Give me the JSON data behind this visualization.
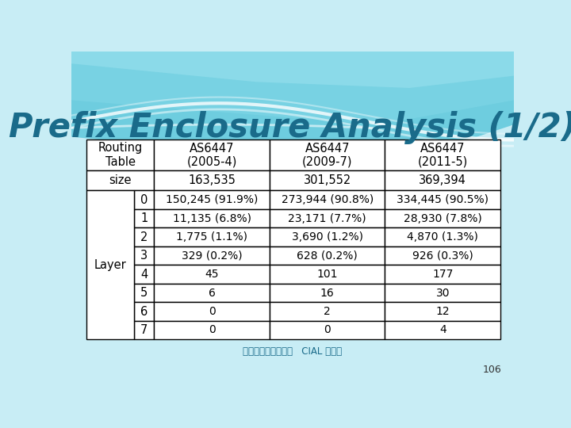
{
  "title": "Prefix Enclosure Analysis (1/2)",
  "title_color": "#1a6b8a",
  "bg_color": "#c8edf5",
  "wave_color1": "#7dd8e8",
  "wave_color2": "#a0e0ee",
  "footer_text": "成功大學資訊工程系   CIAL 實驗室",
  "page_number": "106",
  "col_headers": [
    "Routing\nTable",
    "AS6447\n(2005-4)",
    "AS6447\n(2009-7)",
    "AS6447\n(2011-5)"
  ],
  "size_row": [
    "size",
    "163,535",
    "301,552",
    "369,394"
  ],
  "layer_rows": [
    [
      "0",
      "150,245 (91.9%)",
      "273,944 (90.8%)",
      "334,445 (90.5%)"
    ],
    [
      "1",
      "11,135 (6.8%)",
      "23,171 (7.7%)",
      "28,930 (7.8%)"
    ],
    [
      "2",
      "1,775 (1.1%)",
      "3,690 (1.2%)",
      "4,870 (1.3%)"
    ],
    [
      "3",
      "329 (0.2%)",
      "628 (0.2%)",
      "926 (0.3%)"
    ],
    [
      "4",
      "45",
      "101",
      "177"
    ],
    [
      "5",
      "6",
      "16",
      "30"
    ],
    [
      "6",
      "0",
      "2",
      "12"
    ],
    [
      "7",
      "0",
      "0",
      "4"
    ]
  ],
  "layer_label": "Layer",
  "font_size_title": 30,
  "font_size_table": 10,
  "font_size_footer": 8.5
}
